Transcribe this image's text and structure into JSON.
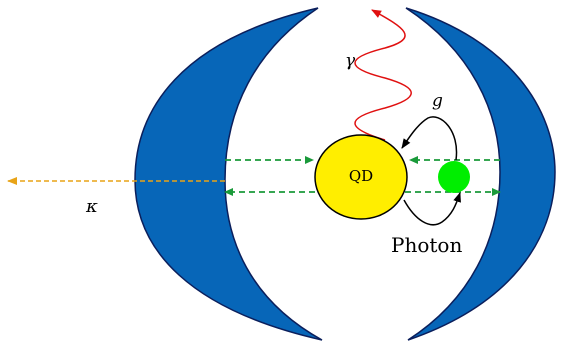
{
  "labels": {
    "gamma": "γ",
    "coupling": "g",
    "dot": "QD",
    "photon": "Photon",
    "kappa": "κ"
  }
}
